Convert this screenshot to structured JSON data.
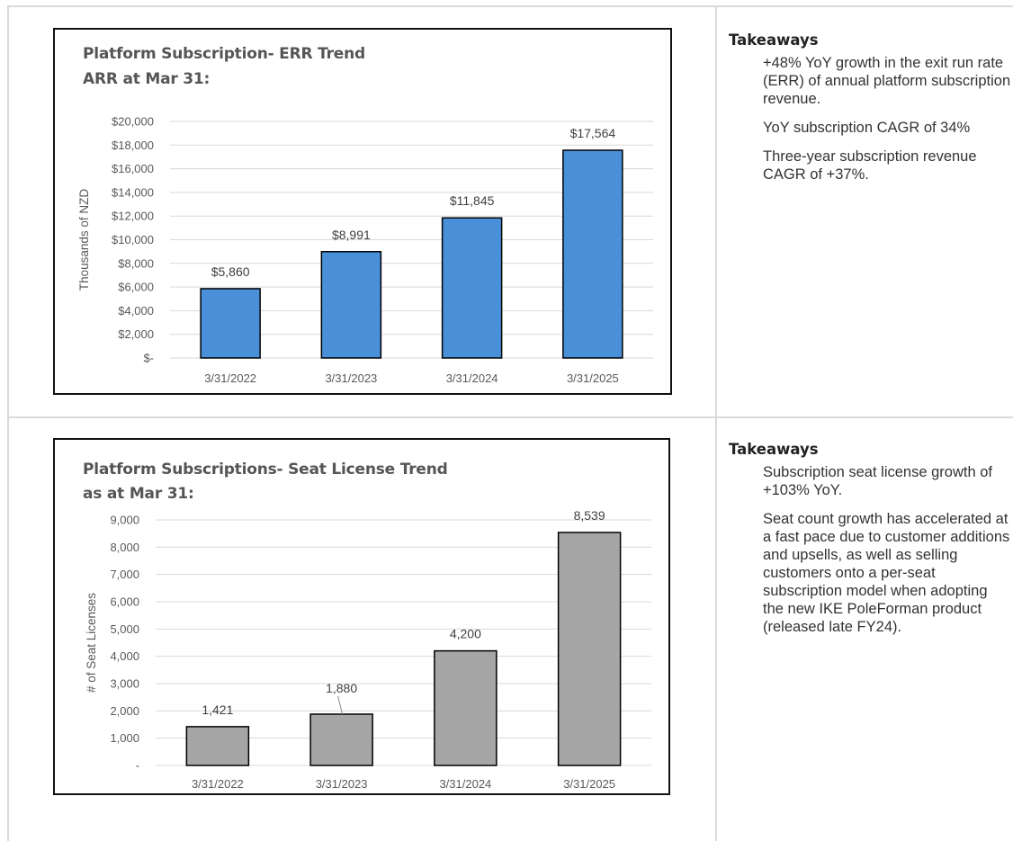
{
  "chart_data": [
    {
      "type": "bar",
      "title": "Platform Subscription- ERR Trend",
      "subtitle": "ARR at Mar 31:",
      "ylabel": "Thousands of NZD",
      "xlabel": "",
      "categories": [
        "3/31/2022",
        "3/31/2023",
        "3/31/2024",
        "3/31/2025"
      ],
      "values": [
        5860,
        8991,
        11845,
        17564
      ],
      "data_labels": [
        "$5,860",
        "$8,991",
        "$11,845",
        "$17,564"
      ],
      "ylim": [
        0,
        20000
      ],
      "y_ticks": [
        "$-",
        "$2,000",
        "$4,000",
        "$6,000",
        "$8,000",
        "$10,000",
        "$12,000",
        "$14,000",
        "$16,000",
        "$18,000",
        "$20,000"
      ],
      "grid": true,
      "color": "#4a90d9"
    },
    {
      "type": "bar",
      "title": "Platform Subscriptions- Seat License Trend",
      "subtitle": "as at Mar 31:",
      "ylabel": "# of Seat Licenses",
      "xlabel": "",
      "categories": [
        "3/31/2022",
        "3/31/2023",
        "3/31/2024",
        "3/31/2025"
      ],
      "values": [
        1421,
        1880,
        4200,
        8539
      ],
      "data_labels": [
        "1,421",
        "1,880",
        "4,200",
        "8,539"
      ],
      "ylim": [
        0,
        9000
      ],
      "y_ticks": [
        "-",
        "1,000",
        "2,000",
        "3,000",
        "4,000",
        "5,000",
        "6,000",
        "7,000",
        "8,000",
        "9,000"
      ],
      "grid": true,
      "color": "#a6a6a6"
    }
  ],
  "takeaways": [
    {
      "heading": "Takeaways",
      "items": [
        "+48% YoY growth in the exit run rate (ERR) of annual platform subscription revenue.",
        "YoY subscription CAGR of 34%",
        "Three-year subscription revenue CAGR of +37%."
      ]
    },
    {
      "heading": "Takeaways",
      "items": [
        "Subscription seat license growth of +103% YoY.",
        "Seat count growth has accelerated at a fast pace due to customer additions and upsells, as well as selling customers onto a per-seat subscription model when adopting the new IKE PoleForman product (released late FY24)."
      ]
    }
  ]
}
